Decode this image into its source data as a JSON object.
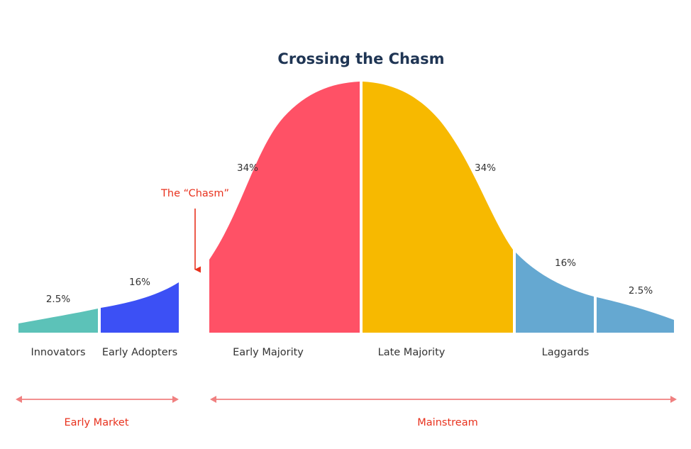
{
  "title": "Crossing the Chasm",
  "colors": {
    "title": "#1f3554",
    "text": "#333333",
    "accent_red": "#e8321e",
    "range_arrow": "#f08080",
    "innovators": "#5cc2b8",
    "early_adopters": "#3c50f5",
    "early_majority": "#ff5166",
    "late_majority": "#f7b900",
    "laggards": "#65a8d1"
  },
  "chasm_label": "The “Chasm”",
  "segments": [
    {
      "name": "Innovators",
      "percent": "2.5%"
    },
    {
      "name": "Early Adopters",
      "percent": "16%"
    },
    {
      "name": "Early Majority",
      "percent": "34%"
    },
    {
      "name": "Late Majority",
      "percent": "34%"
    },
    {
      "name": "Laggards",
      "percent": "16%"
    },
    {
      "name": "",
      "percent": "2.5%"
    }
  ],
  "markets": {
    "early": "Early Market",
    "mainstream": "Mainstream"
  }
}
